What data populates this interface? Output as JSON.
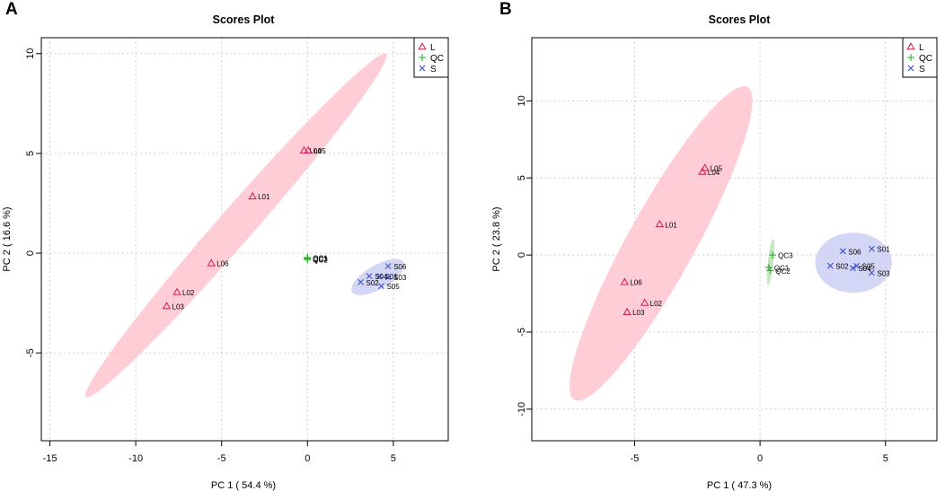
{
  "colors": {
    "L": "#d6265a",
    "QC": "#22b522",
    "S": "#3b4fd6",
    "L_ellipse": "#ffc0cb",
    "QC_ellipse": "#b8e0b0",
    "S_ellipse": "#c8ccf2"
  },
  "chart_data": [
    {
      "panel_label": "A",
      "type": "scatter",
      "title": "Scores Plot",
      "xlabel": "PC 1 ( 54.4 %)",
      "ylabel": "PC 2 ( 16.6 %)",
      "xlim": [
        -15.5,
        8.2
      ],
      "ylim": [
        -9.4,
        10.8
      ],
      "xticks": [
        -15,
        -10,
        -5,
        0,
        5
      ],
      "yticks": [
        -5,
        0,
        5,
        10
      ],
      "grid": true,
      "legend": {
        "position": "top-right",
        "entries": [
          {
            "label": "L",
            "symbol": "triangle",
            "color_key": "L"
          },
          {
            "label": "QC",
            "symbol": "plus",
            "color_key": "QC"
          },
          {
            "label": "S",
            "symbol": "cross",
            "color_key": "S"
          }
        ]
      },
      "series": [
        {
          "name": "L",
          "symbol": "triangle",
          "color_key": "L",
          "points": [
            {
              "label": "L01",
              "x": -3.2,
              "y": 2.85
            },
            {
              "label": "L02",
              "x": -7.6,
              "y": -1.95
            },
            {
              "label": "L03",
              "x": -8.2,
              "y": -2.65
            },
            {
              "label": "L04",
              "x": -0.2,
              "y": 5.15
            },
            {
              "label": "L05",
              "x": 0.05,
              "y": 5.15
            },
            {
              "label": "L06",
              "x": -5.6,
              "y": -0.5
            }
          ]
        },
        {
          "name": "QC",
          "symbol": "plus",
          "color_key": "QC",
          "points": [
            {
              "label": "QC1",
              "x": 0.0,
              "y": -0.22
            },
            {
              "label": "QC2",
              "x": 0.0,
              "y": -0.32
            },
            {
              "label": "QC3",
              "x": 0.0,
              "y": -0.27
            }
          ]
        },
        {
          "name": "S",
          "symbol": "cross",
          "color_key": "S",
          "points": [
            {
              "label": "S01",
              "x": 4.2,
              "y": -1.15
            },
            {
              "label": "S02",
              "x": 3.1,
              "y": -1.45
            },
            {
              "label": "S03",
              "x": 4.7,
              "y": -1.2
            },
            {
              "label": "S04",
              "x": 3.6,
              "y": -1.15
            },
            {
              "label": "S05",
              "x": 4.3,
              "y": -1.65
            },
            {
              "label": "S06",
              "x": 4.7,
              "y": -0.65
            }
          ]
        }
      ],
      "ellipses": [
        {
          "group": "L",
          "color_key": "L_ellipse",
          "ends": [
            [
              -12.9,
              -7.2
            ],
            [
              4.6,
              10.0
            ]
          ],
          "minor_half": 0.95
        },
        {
          "group": "S",
          "color_key": "S_ellipse",
          "ends": [
            [
              2.6,
              -1.95
            ],
            [
              5.6,
              -0.45
            ]
          ],
          "minor_half": 0.62
        }
      ]
    },
    {
      "panel_label": "B",
      "type": "scatter",
      "title": "Scores Plot",
      "xlabel": "PC 1 ( 47.3 %)",
      "ylabel": "PC 2 ( 23.8 %)",
      "xlim": [
        -9.1,
        7.05
      ],
      "ylim": [
        -12.05,
        14.1
      ],
      "xticks": [
        -5,
        0,
        5
      ],
      "yticks": [
        -10,
        -5,
        0,
        5,
        10
      ],
      "grid": true,
      "legend": {
        "position": "top-right",
        "entries": [
          {
            "label": "L",
            "symbol": "triangle",
            "color_key": "L"
          },
          {
            "label": "QC",
            "symbol": "plus",
            "color_key": "QC"
          },
          {
            "label": "S",
            "symbol": "cross",
            "color_key": "S"
          }
        ]
      },
      "series": [
        {
          "name": "L",
          "symbol": "triangle",
          "color_key": "L",
          "points": [
            {
              "label": "L01",
              "x": -4.0,
              "y": 2.0
            },
            {
              "label": "L02",
              "x": -4.6,
              "y": -3.1
            },
            {
              "label": "L03",
              "x": -5.3,
              "y": -3.7
            },
            {
              "label": "L04",
              "x": -2.3,
              "y": 5.4
            },
            {
              "label": "L05",
              "x": -2.2,
              "y": 5.65
            },
            {
              "label": "L06",
              "x": -5.4,
              "y": -1.75
            }
          ]
        },
        {
          "name": "QC",
          "symbol": "plus",
          "color_key": "QC",
          "points": [
            {
              "label": "QC1",
              "x": 0.35,
              "y": -0.8
            },
            {
              "label": "QC2",
              "x": 0.4,
              "y": -1.0
            },
            {
              "label": "QC3",
              "x": 0.5,
              "y": 0.0
            }
          ]
        },
        {
          "name": "S",
          "symbol": "cross",
          "color_key": "S",
          "points": [
            {
              "label": "S01",
              "x": 4.45,
              "y": 0.4
            },
            {
              "label": "S02",
              "x": 2.8,
              "y": -0.7
            },
            {
              "label": "S03",
              "x": 4.45,
              "y": -1.15
            },
            {
              "label": "S04",
              "x": 3.7,
              "y": -0.85
            },
            {
              "label": "S05",
              "x": 3.85,
              "y": -0.7
            },
            {
              "label": "S06",
              "x": 3.3,
              "y": 0.25
            }
          ]
        }
      ],
      "ellipses": [
        {
          "group": "L",
          "color_key": "L_ellipse",
          "ends": [
            [
              -7.4,
              -9.4
            ],
            [
              -0.5,
              10.9
            ]
          ],
          "minor_half": 1.45
        },
        {
          "group": "QC",
          "color_key": "QC_ellipse",
          "ends": [
            [
              0.32,
              -1.95
            ],
            [
              0.52,
              1.05
            ]
          ],
          "minor_half": 0.09
        },
        {
          "group": "S",
          "color_key": "S_ellipse",
          "ends": [
            [
              2.2,
              -0.5
            ],
            [
              5.25,
              -0.5
            ]
          ],
          "minor_half": 1.95
        }
      ]
    }
  ]
}
